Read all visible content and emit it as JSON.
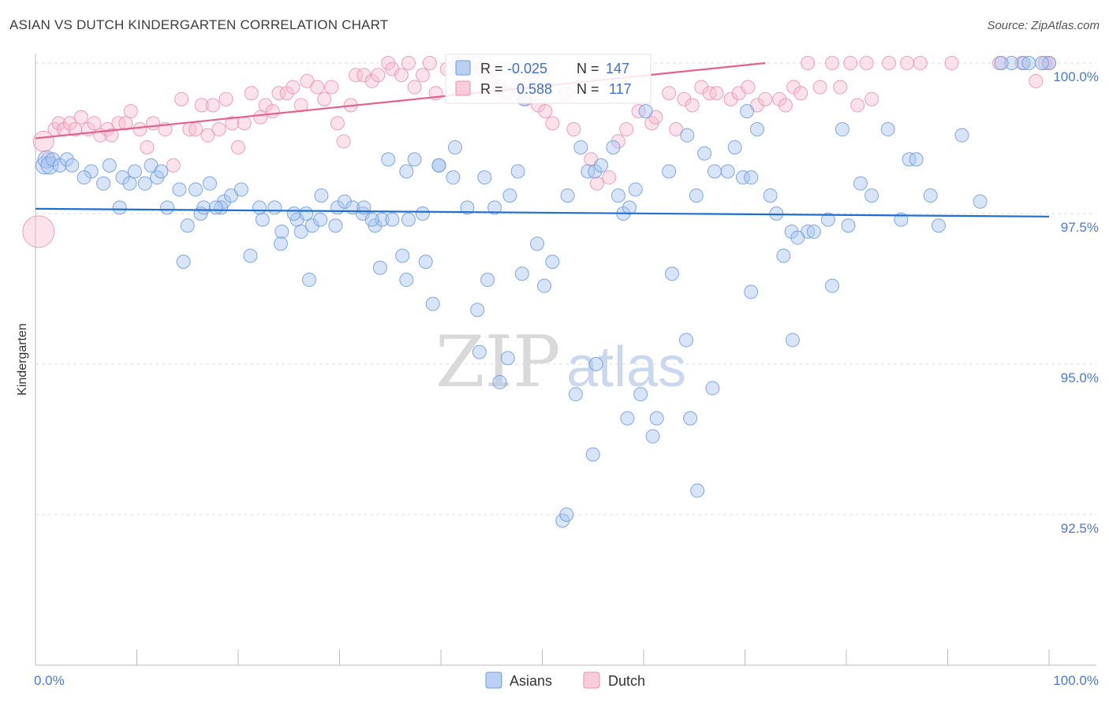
{
  "header": {
    "title": "ASIAN VS DUTCH KINDERGARTEN CORRELATION CHART",
    "source": "Source: ZipAtlas.com"
  },
  "watermark": {
    "zip": "ZIP",
    "atlas": "atlas"
  },
  "colors": {
    "asians": "#6a9be0",
    "asians_fill": "#a9c6f0",
    "asians_line": "#1f6fd1",
    "dutch": "#ec8fb0",
    "dutch_fill": "#f6bfd2",
    "dutch_line": "#e2628f",
    "accent_text": "#3f6fd0",
    "grid": "#dddddd"
  },
  "stats": {
    "asians": {
      "r_label": "R =",
      "r_value": "-0.025",
      "n_label": "N =",
      "n_value": "147"
    },
    "dutch": {
      "r_label": "R =",
      "r_value": "0.588",
      "n_label": "N =",
      "n_value": "117"
    }
  },
  "legend": {
    "asians": "Asians",
    "dutch": "Dutch"
  },
  "chart_data": {
    "type": "scatter",
    "title": "ASIAN VS DUTCH KINDERGARTEN CORRELATION CHART",
    "xlabel": "",
    "ylabel": "Kindergarten",
    "xlim": [
      0,
      100
    ],
    "ylim": [
      90.1,
      100.4
    ],
    "x_tick_labels": [
      "0.0%",
      "100.0%"
    ],
    "y_ticks": [
      92.5,
      95.0,
      97.5,
      100.0
    ],
    "y_tick_labels": [
      "92.5%",
      "95.0%",
      "97.5%",
      "100.0%"
    ],
    "grid": true,
    "series": [
      {
        "name": "Asians",
        "trend": {
          "x": [
            0,
            100
          ],
          "y": [
            97.58,
            97.45
          ]
        },
        "points": [
          [
            0.9,
            98.3
          ],
          [
            1.1,
            98.4
          ],
          [
            1.4,
            98.3
          ],
          [
            1.7,
            98.4
          ],
          [
            2.4,
            98.3
          ],
          [
            3.1,
            98.4
          ],
          [
            3.6,
            98.3
          ],
          [
            5.5,
            98.2
          ],
          [
            4.8,
            98.1
          ],
          [
            6.7,
            98.0
          ],
          [
            7.3,
            98.3
          ],
          [
            8.6,
            98.1
          ],
          [
            9.3,
            98.0
          ],
          [
            8.3,
            97.6
          ],
          [
            9.8,
            98.2
          ],
          [
            10.8,
            98.0
          ],
          [
            11.4,
            98.3
          ],
          [
            12.0,
            98.1
          ],
          [
            12.4,
            98.2
          ],
          [
            13.0,
            97.6
          ],
          [
            14.2,
            97.9
          ],
          [
            15.8,
            97.9
          ],
          [
            16.3,
            97.5
          ],
          [
            15.0,
            97.3
          ],
          [
            14.6,
            96.7
          ],
          [
            16.6,
            97.6
          ],
          [
            17.2,
            98.0
          ],
          [
            18.6,
            97.7
          ],
          [
            18.3,
            97.6
          ],
          [
            19.3,
            97.8
          ],
          [
            20.3,
            97.9
          ],
          [
            17.8,
            97.6
          ],
          [
            21.2,
            96.8
          ],
          [
            22.4,
            97.4
          ],
          [
            22.1,
            97.6
          ],
          [
            23.6,
            97.6
          ],
          [
            24.3,
            97.2
          ],
          [
            25.8,
            97.4
          ],
          [
            26.2,
            97.2
          ],
          [
            27.3,
            97.3
          ],
          [
            28.1,
            97.4
          ],
          [
            29.6,
            97.3
          ],
          [
            25.5,
            97.5
          ],
          [
            26.7,
            97.5
          ],
          [
            28.2,
            97.8
          ],
          [
            29.8,
            97.6
          ],
          [
            30.5,
            97.7
          ],
          [
            31.3,
            97.6
          ],
          [
            32.3,
            97.5
          ],
          [
            33.5,
            97.3
          ],
          [
            34.2,
            97.4
          ],
          [
            35.2,
            97.4
          ],
          [
            36.8,
            97.4
          ],
          [
            38.2,
            97.5
          ],
          [
            37.4,
            98.4
          ],
          [
            39.8,
            98.3
          ],
          [
            41.2,
            98.1
          ],
          [
            39.2,
            96.0
          ],
          [
            38.5,
            96.7
          ],
          [
            36.6,
            96.4
          ],
          [
            36.2,
            96.8
          ],
          [
            33.2,
            97.4
          ],
          [
            32.4,
            97.6
          ],
          [
            34.8,
            98.4
          ],
          [
            36.6,
            98.2
          ],
          [
            39.8,
            98.3
          ],
          [
            41.4,
            98.6
          ],
          [
            42.6,
            97.6
          ],
          [
            44.3,
            98.1
          ],
          [
            45.3,
            97.6
          ],
          [
            46.8,
            97.8
          ],
          [
            47.6,
            98.2
          ],
          [
            48.2,
            99.4
          ],
          [
            49.5,
            97.0
          ],
          [
            51.0,
            96.7
          ],
          [
            50.2,
            96.3
          ],
          [
            52.5,
            97.8
          ],
          [
            53.8,
            98.6
          ],
          [
            54.5,
            98.2
          ],
          [
            55.2,
            98.2
          ],
          [
            55.8,
            98.3
          ],
          [
            57.0,
            98.6
          ],
          [
            57.5,
            97.8
          ],
          [
            58.0,
            97.5
          ],
          [
            58.6,
            97.6
          ],
          [
            59.2,
            97.9
          ],
          [
            60.2,
            99.2
          ],
          [
            62.5,
            98.2
          ],
          [
            64.3,
            98.8
          ],
          [
            65.2,
            97.8
          ],
          [
            66.0,
            98.5
          ],
          [
            67.0,
            98.2
          ],
          [
            68.3,
            98.2
          ],
          [
            69.0,
            98.6
          ],
          [
            69.8,
            98.1
          ],
          [
            70.6,
            98.1
          ],
          [
            70.2,
            99.2
          ],
          [
            71.2,
            98.9
          ],
          [
            72.5,
            97.8
          ],
          [
            73.1,
            97.5
          ],
          [
            73.8,
            96.8
          ],
          [
            74.6,
            97.2
          ],
          [
            76.2,
            97.2
          ],
          [
            78.2,
            97.4
          ],
          [
            78.6,
            96.3
          ],
          [
            79.6,
            98.9
          ],
          [
            80.2,
            97.3
          ],
          [
            81.4,
            98.0
          ],
          [
            82.5,
            97.8
          ],
          [
            84.1,
            98.9
          ],
          [
            85.4,
            97.4
          ],
          [
            86.2,
            98.4
          ],
          [
            86.9,
            98.4
          ],
          [
            88.3,
            97.8
          ],
          [
            89.1,
            97.3
          ],
          [
            91.4,
            98.8
          ],
          [
            93.2,
            97.7
          ],
          [
            75.2,
            97.1
          ],
          [
            76.8,
            97.2
          ],
          [
            70.6,
            96.2
          ],
          [
            74.7,
            95.4
          ],
          [
            43.6,
            95.9
          ],
          [
            43.8,
            95.2
          ],
          [
            46.6,
            95.1
          ],
          [
            45.8,
            94.7
          ],
          [
            53.3,
            94.5
          ],
          [
            55.3,
            95.0
          ],
          [
            55.0,
            93.5
          ],
          [
            58.4,
            94.1
          ],
          [
            59.7,
            94.5
          ],
          [
            60.9,
            93.8
          ],
          [
            61.3,
            94.1
          ],
          [
            64.6,
            94.1
          ],
          [
            65.3,
            92.9
          ],
          [
            66.8,
            94.6
          ],
          [
            52.0,
            92.4
          ],
          [
            52.4,
            92.5
          ],
          [
            62.8,
            96.5
          ],
          [
            64.2,
            95.4
          ],
          [
            34.0,
            96.6
          ],
          [
            24.2,
            97.0
          ],
          [
            27.0,
            96.4
          ],
          [
            44.6,
            96.4
          ],
          [
            48.0,
            96.5
          ],
          [
            97.5,
            100.0
          ],
          [
            98.0,
            100.0
          ],
          [
            100.0,
            100.0
          ],
          [
            99.3,
            100.0
          ],
          [
            96.3,
            100.0
          ],
          [
            95.3,
            100.0
          ]
        ]
      },
      {
        "name": "Dutch",
        "trend": {
          "x": [
            0,
            72
          ],
          "y": [
            98.75,
            100.0
          ]
        },
        "points": [
          [
            0.3,
            97.2
          ],
          [
            0.8,
            98.7
          ],
          [
            1.2,
            98.4
          ],
          [
            1.9,
            98.9
          ],
          [
            2.3,
            99.0
          ],
          [
            2.8,
            98.9
          ],
          [
            3.4,
            99.0
          ],
          [
            3.9,
            98.9
          ],
          [
            4.5,
            99.1
          ],
          [
            5.2,
            98.9
          ],
          [
            5.8,
            99.0
          ],
          [
            6.4,
            98.8
          ],
          [
            7.1,
            98.9
          ],
          [
            7.5,
            98.8
          ],
          [
            8.2,
            99.0
          ],
          [
            8.9,
            99.0
          ],
          [
            9.4,
            99.2
          ],
          [
            10.3,
            98.9
          ],
          [
            11.0,
            98.6
          ],
          [
            11.6,
            99.0
          ],
          [
            12.8,
            98.9
          ],
          [
            13.6,
            98.3
          ],
          [
            14.4,
            99.4
          ],
          [
            15.2,
            98.9
          ],
          [
            15.8,
            98.9
          ],
          [
            16.4,
            99.3
          ],
          [
            17.0,
            98.8
          ],
          [
            17.5,
            99.3
          ],
          [
            18.1,
            98.9
          ],
          [
            18.8,
            99.4
          ],
          [
            19.4,
            99.0
          ],
          [
            20.0,
            98.6
          ],
          [
            20.6,
            99.0
          ],
          [
            21.3,
            99.5
          ],
          [
            22.2,
            99.1
          ],
          [
            22.7,
            99.3
          ],
          [
            23.4,
            99.2
          ],
          [
            24.0,
            99.5
          ],
          [
            24.8,
            99.5
          ],
          [
            25.4,
            99.6
          ],
          [
            26.2,
            99.3
          ],
          [
            26.8,
            99.7
          ],
          [
            27.8,
            99.6
          ],
          [
            28.5,
            99.4
          ],
          [
            29.2,
            99.6
          ],
          [
            29.8,
            99.0
          ],
          [
            30.4,
            98.7
          ],
          [
            31.1,
            99.3
          ],
          [
            31.6,
            99.8
          ],
          [
            32.4,
            99.8
          ],
          [
            33.2,
            99.7
          ],
          [
            33.8,
            99.8
          ],
          [
            34.8,
            100.0
          ],
          [
            35.2,
            99.9
          ],
          [
            36.1,
            99.8
          ],
          [
            36.8,
            100.0
          ],
          [
            37.4,
            99.6
          ],
          [
            38.2,
            99.8
          ],
          [
            38.9,
            100.0
          ],
          [
            39.5,
            99.5
          ],
          [
            40.6,
            99.9
          ],
          [
            41.6,
            100.0
          ],
          [
            42.3,
            99.9
          ],
          [
            43.5,
            100.0
          ],
          [
            44.0,
            99.9
          ],
          [
            44.9,
            99.7
          ],
          [
            45.8,
            99.6
          ],
          [
            46.6,
            99.5
          ],
          [
            47.6,
            99.6
          ],
          [
            48.4,
            99.4
          ],
          [
            49.0,
            99.8
          ],
          [
            49.6,
            99.3
          ],
          [
            50.3,
            99.2
          ],
          [
            51.0,
            99.0
          ],
          [
            52.3,
            99.5
          ],
          [
            53.1,
            98.9
          ],
          [
            54.8,
            98.4
          ],
          [
            55.4,
            98.0
          ],
          [
            56.6,
            98.1
          ],
          [
            57.5,
            98.7
          ],
          [
            58.3,
            98.9
          ],
          [
            59.5,
            99.2
          ],
          [
            60.8,
            99.0
          ],
          [
            61.2,
            99.1
          ],
          [
            62.5,
            99.5
          ],
          [
            63.2,
            98.9
          ],
          [
            64.0,
            99.4
          ],
          [
            64.8,
            99.3
          ],
          [
            65.7,
            99.6
          ],
          [
            66.5,
            99.5
          ],
          [
            67.2,
            99.5
          ],
          [
            68.6,
            99.4
          ],
          [
            69.4,
            99.5
          ],
          [
            70.3,
            99.6
          ],
          [
            71.2,
            99.3
          ],
          [
            72.0,
            99.4
          ],
          [
            73.4,
            99.4
          ],
          [
            74.0,
            99.3
          ],
          [
            74.8,
            99.6
          ],
          [
            75.5,
            99.5
          ],
          [
            76.2,
            100.0
          ],
          [
            77.4,
            99.6
          ],
          [
            78.6,
            100.0
          ],
          [
            79.4,
            99.6
          ],
          [
            80.4,
            100.0
          ],
          [
            81.1,
            99.3
          ],
          [
            82.0,
            100.0
          ],
          [
            82.5,
            99.4
          ],
          [
            84.2,
            100.0
          ],
          [
            86.0,
            100.0
          ],
          [
            87.3,
            100.0
          ],
          [
            90.4,
            100.0
          ],
          [
            95.1,
            100.0
          ],
          [
            97.3,
            100.0
          ],
          [
            98.7,
            99.7
          ],
          [
            100.0,
            100.0
          ],
          [
            99.6,
            100.0
          ]
        ]
      }
    ]
  }
}
